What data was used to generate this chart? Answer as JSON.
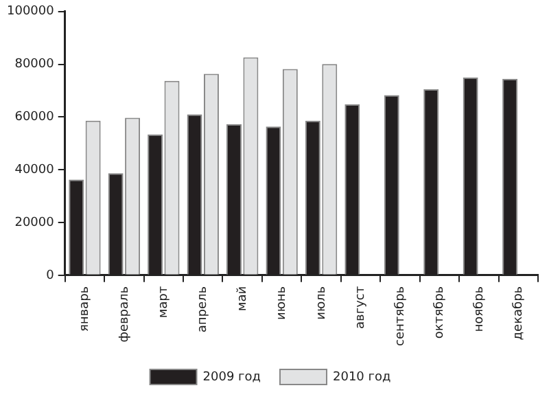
{
  "chart_data": {
    "type": "bar",
    "categories": [
      "январь",
      "февраль",
      "март",
      "апрель",
      "май",
      "июнь",
      "июль",
      "август",
      "сентябрь",
      "октябрь",
      "ноябрь",
      "декабрь"
    ],
    "series": [
      {
        "name": "2009 год",
        "color": "#231f20",
        "values": [
          36300,
          38700,
          53400,
          61000,
          57300,
          56400,
          58600,
          64800,
          68300,
          70500,
          75000,
          74500
        ]
      },
      {
        "name": "2010 год",
        "color": "#e2e3e4",
        "values": [
          58600,
          59700,
          73700,
          76400,
          82600,
          78200,
          80100,
          null,
          null,
          null,
          null,
          null
        ]
      }
    ],
    "ylim": [
      0,
      100000
    ],
    "yticks": [
      0,
      20000,
      40000,
      60000,
      80000,
      100000
    ],
    "grid": false,
    "legend": "bottom"
  }
}
